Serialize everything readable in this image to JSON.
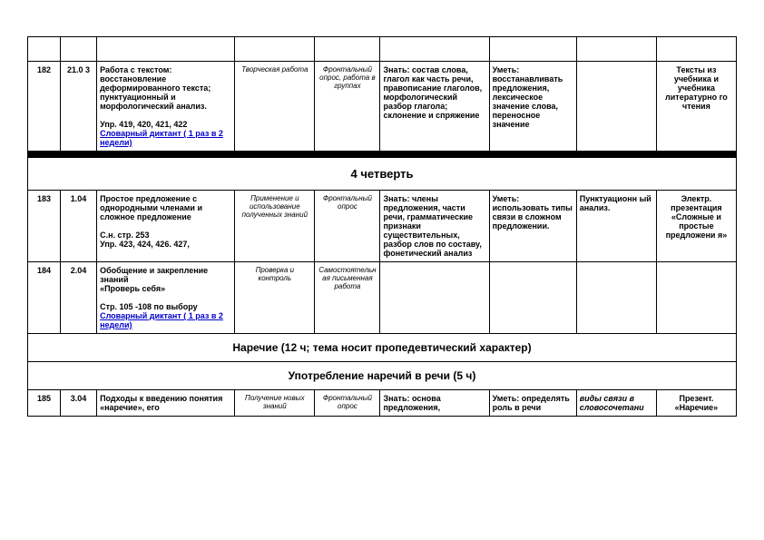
{
  "rows": [
    {
      "num": "182",
      "date": "21.0\n3",
      "topic": "Работа с текстом: восстановление деформированного текста; пунктуационный и морфологический анализ.",
      "topic_extra": "Упр. 419, 420, 421, 422",
      "topic_link": "Словарный диктант ( 1 раз в 2 недели)",
      "type": "Творческая работа",
      "form": "Фронтальный опрос, работа в группах",
      "know": "Знать: состав слова, глагол как часть речи, правописание глаголов, морфологический разбор глагола; склонение и спряжение",
      "skill": "Уметь: восстанавливать предложения, лексическое значение слова, переносное значение",
      "extra": "",
      "equip": "Тексты из учебника и учебника литературно го чтения"
    }
  ],
  "section1": "4 четверть",
  "rows2": [
    {
      "num": "183",
      "date": "1.04",
      "topic": "Простое предложение с однородными членами и сложное предложение",
      "topic_extra": "С.н. стр. 253\nУпр. 423, 424, 426. 427,",
      "topic_link": "",
      "type": "Применение и использование полученных знаний",
      "form": "Фронтальный опрос",
      "know": "Знать: члены предложения, части речи, грамматические признаки существительных, разбор слов по составу, фонетический анализ",
      "skill": "Уметь: использовать типы связи в сложном предложении.",
      "extra": "Пунктуационн ый анализ.",
      "equip": "Электр. презентация «Сложные и простые предложени я»"
    },
    {
      "num": "184",
      "date": "2.04",
      "topic": "Обобщение и закрепление знаний\n«Проверь себя»",
      "topic_extra": "Стр. 105 -108 по выбору",
      "topic_link": "Словарный диктант ( 1 раз в 2 недели)",
      "type": "Проверка и контроль",
      "form": "Самостоятельная письменная работа",
      "know": "",
      "skill": "",
      "extra": "",
      "equip": ""
    }
  ],
  "section2": "Наречие (12 ч; тема носит пропедевтический характер)",
  "section3": "Употребление наречий в речи (5 ч)",
  "rows3": [
    {
      "num": "185",
      "date": "3.04",
      "topic": "Подходы к введению понятия «наречие», его",
      "type": "Получение новых знаний",
      "form": "Фронтальный опрос",
      "know": "Знать: основа предложения,",
      "skill": "Уметь: определять роль в речи",
      "extra_italic": "виды связи в словосочетани",
      "equip": "Презент. «Наречие»"
    }
  ]
}
